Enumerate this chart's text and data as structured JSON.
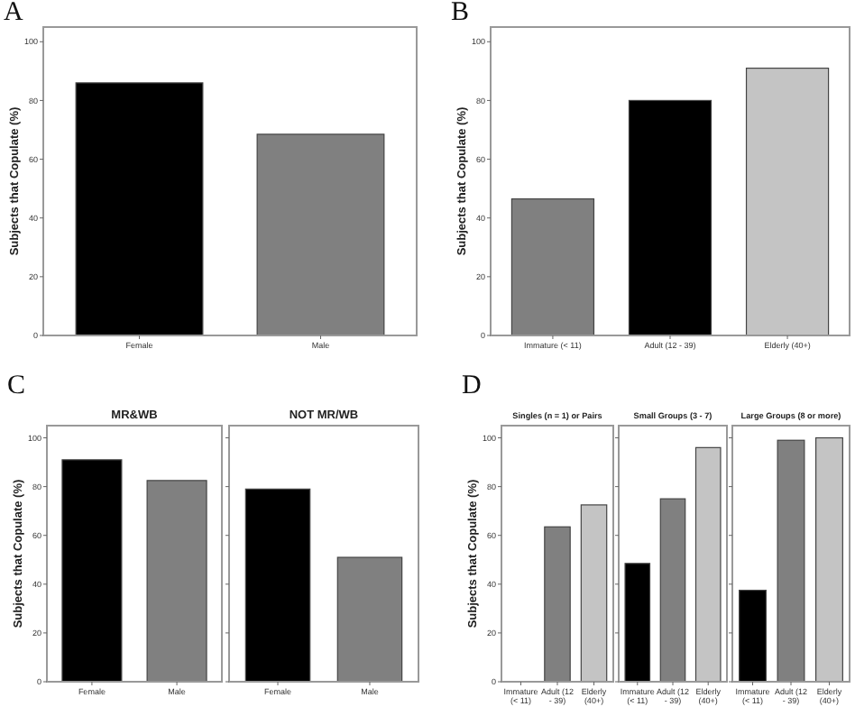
{
  "chart_data": [
    {
      "type": "bar",
      "annotations": [
        "A"
      ],
      "ylabel": "Subjects that Copulate (%)",
      "categories": [
        "Female",
        "Male"
      ],
      "values": [
        86,
        68.5
      ],
      "colors": [
        "#000000",
        "#808080"
      ],
      "ylim": [
        0,
        105
      ],
      "yticks": [
        0,
        20,
        40,
        60,
        80,
        100
      ],
      "grid": false
    },
    {
      "type": "bar",
      "annotations": [
        "B"
      ],
      "ylabel": "Subjects that Copulate (%)",
      "categories": [
        "Immature (< 11)",
        "Adult (12 - 39)",
        "Elderly (40+)"
      ],
      "values": [
        46.5,
        80,
        91
      ],
      "colors": [
        "#808080",
        "#000000",
        "#c4c4c4"
      ],
      "ylim": [
        0,
        105
      ],
      "yticks": [
        0,
        20,
        40,
        60,
        80,
        100
      ],
      "grid": false
    },
    {
      "type": "bar",
      "annotations": [
        "C"
      ],
      "title": "MR&WB",
      "ylabel": "Subjects that Copulate (%)",
      "categories": [
        "Female",
        "Male"
      ],
      "values": [
        91,
        82.5
      ],
      "colors": [
        "#000000",
        "#808080"
      ],
      "ylim": [
        0,
        105
      ],
      "yticks": [
        0,
        20,
        40,
        60,
        80,
        100
      ],
      "grid": false
    },
    {
      "type": "bar",
      "title": "NOT MR/WB",
      "categories": [
        "Female",
        "Male"
      ],
      "values": [
        79,
        51
      ],
      "colors": [
        "#000000",
        "#808080"
      ],
      "ylim": [
        0,
        105
      ],
      "yticks": [
        0,
        20,
        40,
        60,
        80,
        100
      ],
      "grid": false,
      "tick_labels": "x"
    },
    {
      "type": "bar",
      "annotations": [
        "D"
      ],
      "title": "Singles (n = 1) or Pairs",
      "ylabel": "Subjects that Copulate (%)",
      "categories": [
        "Immature (< 11)",
        "Adult (12 - 39)",
        "Elderly (40+)"
      ],
      "values": [
        0,
        63.5,
        72.5
      ],
      "colors": [
        "#000000",
        "#808080",
        "#c4c4c4"
      ],
      "ylim": [
        0,
        105
      ],
      "yticks": [
        0,
        20,
        40,
        60,
        80,
        100
      ],
      "grid": false
    },
    {
      "type": "bar",
      "title": "Small Groups (3 - 7)",
      "categories": [
        "Immature (< 11)",
        "Adult (12 - 39)",
        "Elderly (40+)"
      ],
      "values": [
        48.5,
        75,
        96
      ],
      "colors": [
        "#000000",
        "#808080",
        "#c4c4c4"
      ],
      "ylim": [
        0,
        105
      ],
      "yticks": [
        0,
        20,
        40,
        60,
        80,
        100
      ],
      "grid": false,
      "tick_labels": "x"
    },
    {
      "type": "bar",
      "title": "Large Groups (8 or more)",
      "categories": [
        "Immature (< 11)",
        "Adult (12 - 39)",
        "Elderly (40+)"
      ],
      "values": [
        37.5,
        99,
        100
      ],
      "colors": [
        "#000000",
        "#808080",
        "#c4c4c4"
      ],
      "ylim": [
        0,
        105
      ],
      "yticks": [
        0,
        20,
        40,
        60,
        80,
        100
      ],
      "grid": false,
      "tick_labels": "x"
    }
  ]
}
